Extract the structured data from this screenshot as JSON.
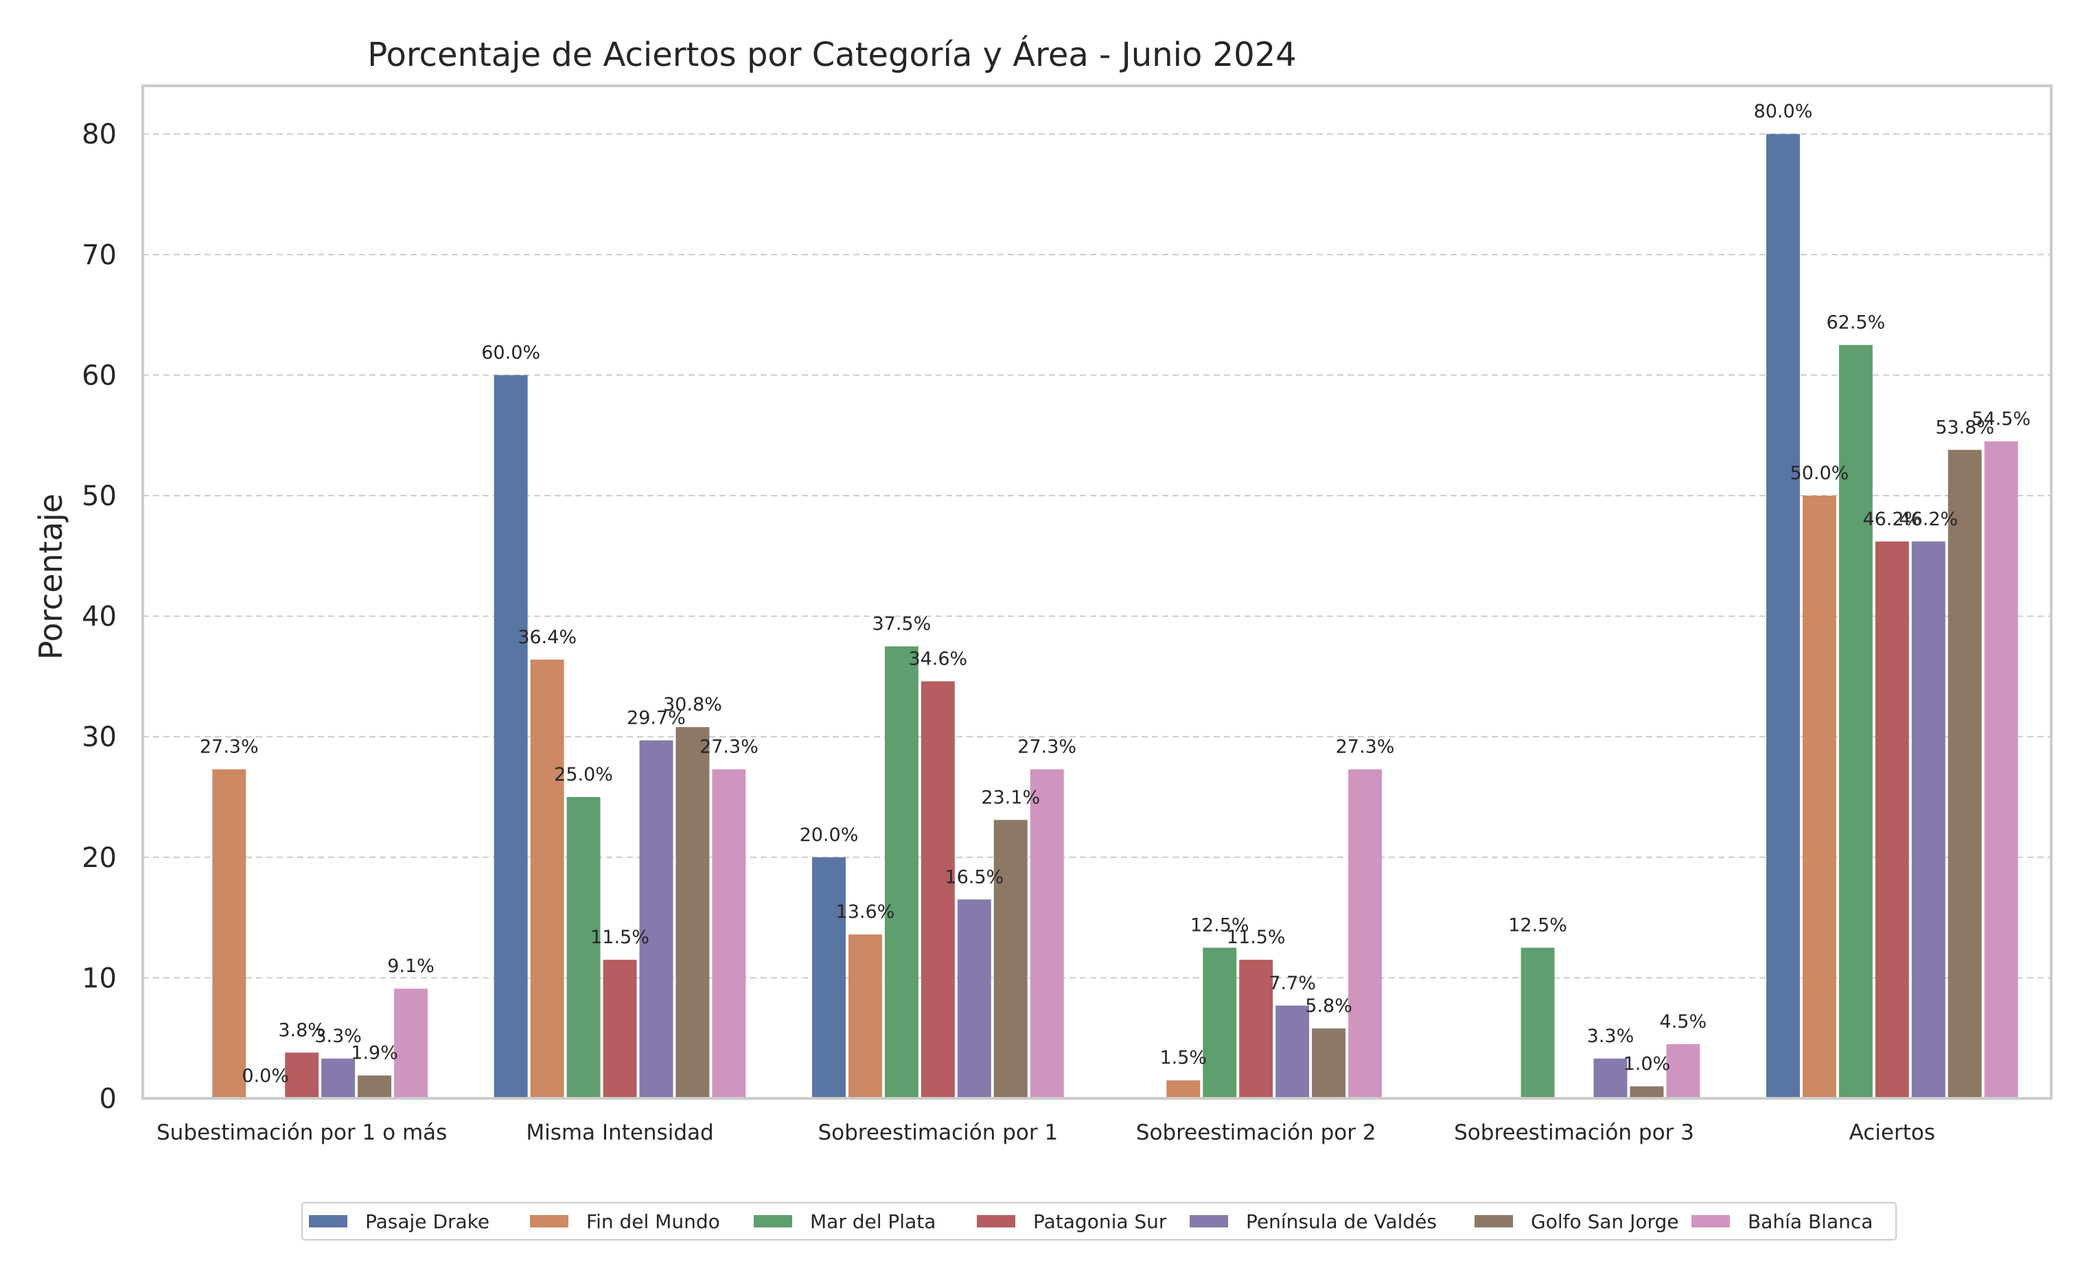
{
  "chart_data": {
    "type": "bar",
    "title": "Porcentaje de Aciertos por Categoría y Área - Junio 2024",
    "xlabel": "",
    "ylabel": "Porcentaje",
    "ylim": [
      0,
      84
    ],
    "yticks": [
      0,
      10,
      20,
      30,
      40,
      50,
      60,
      70,
      80
    ],
    "grid": true,
    "legend_position": "bottom-center",
    "categories": [
      "Subestimación por 1 o más",
      "Misma Intensidad",
      "Sobreestimación por 1",
      "Sobreestimación por 2",
      "Sobreestimación por 3",
      "Aciertos"
    ],
    "series": [
      {
        "name": "Pasaje Drake",
        "color": "#5975a4",
        "values": [
          null,
          60.0,
          20.0,
          null,
          null,
          80.0
        ],
        "labels": [
          "",
          "60.0%",
          "20.0%",
          "",
          "",
          "80.0%"
        ]
      },
      {
        "name": "Fin del Mundo",
        "color": "#cc8963",
        "values": [
          27.3,
          36.4,
          13.6,
          1.5,
          null,
          50.0
        ],
        "labels": [
          "27.3%",
          "36.4%",
          "13.6%",
          "1.5%",
          "",
          "50.0%"
        ]
      },
      {
        "name": "Mar del Plata",
        "color": "#5f9e6e",
        "values": [
          0.0,
          25.0,
          37.5,
          12.5,
          12.5,
          62.5
        ],
        "labels": [
          "0.0%",
          "25.0%",
          "37.5%",
          "12.5%",
          "12.5%",
          "62.5%"
        ]
      },
      {
        "name": "Patagonia Sur",
        "color": "#b55d60",
        "values": [
          3.8,
          11.5,
          34.6,
          11.5,
          null,
          46.2
        ],
        "labels": [
          "3.8%",
          "11.5%",
          "34.6%",
          "11.5%",
          "",
          "46.2%"
        ]
      },
      {
        "name": "Península de Valdés",
        "color": "#857aab",
        "values": [
          3.3,
          29.7,
          16.5,
          7.7,
          3.3,
          46.2
        ],
        "labels": [
          "3.3%",
          "29.7%",
          "16.5%",
          "7.7%",
          "3.3%",
          "46.2%"
        ]
      },
      {
        "name": "Golfo San Jorge",
        "color": "#8d7866",
        "values": [
          1.9,
          30.8,
          23.1,
          5.8,
          1.0,
          53.8
        ],
        "labels": [
          "1.9%",
          "30.8%",
          "23.1%",
          "5.8%",
          "1.0%",
          "53.8%"
        ]
      },
      {
        "name": "Bahía Blanca",
        "color": "#d095bf",
        "values": [
          9.1,
          27.3,
          27.3,
          27.3,
          4.5,
          54.5
        ],
        "labels": [
          "9.1%",
          "27.3%",
          "27.3%",
          "27.3%",
          "4.5%",
          "54.5%"
        ]
      }
    ]
  }
}
